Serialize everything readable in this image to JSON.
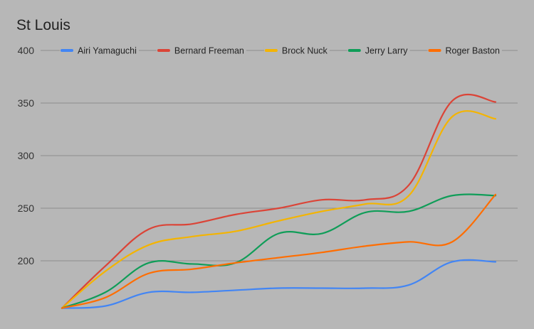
{
  "chart_data": {
    "type": "line",
    "title": "St Louis",
    "xlabel": "",
    "ylabel": "",
    "ylim": [
      150,
      400
    ],
    "yticks": [
      200,
      250,
      300,
      350,
      400
    ],
    "grid": true,
    "legend_position": "top",
    "x": [
      0,
      1,
      2,
      3,
      4,
      5,
      6,
      7,
      8,
      9,
      10
    ],
    "series": [
      {
        "name": "Airi Yamaguchi",
        "color": "#4285f4",
        "values": [
          155,
          157,
          170,
          170,
          172,
          174,
          174,
          174,
          177,
          199,
          199
        ]
      },
      {
        "name": "Bernard Freeman",
        "color": "#db4437",
        "values": [
          155,
          195,
          230,
          235,
          244,
          250,
          258,
          258,
          272,
          352,
          351
        ]
      },
      {
        "name": "Brock Nuck",
        "color": "#f4b400",
        "values": [
          155,
          190,
          215,
          223,
          228,
          238,
          247,
          254,
          262,
          337,
          335
        ]
      },
      {
        "name": "Jerry Larry",
        "color": "#0f9d58",
        "values": [
          155,
          170,
          198,
          197,
          198,
          226,
          226,
          246,
          247,
          262,
          262
        ]
      },
      {
        "name": "Roger Baston",
        "color": "#ff6d00",
        "values": [
          155,
          165,
          188,
          192,
          198,
          203,
          208,
          214,
          218,
          218,
          263
        ]
      }
    ]
  }
}
